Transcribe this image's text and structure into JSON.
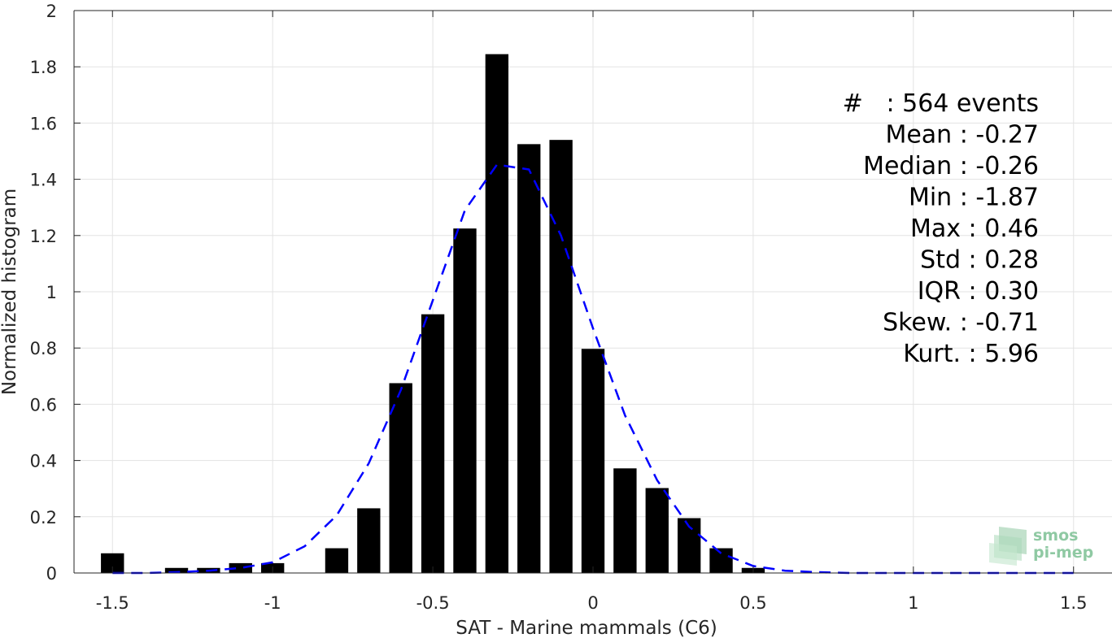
{
  "chart_data": {
    "type": "bar",
    "xlabel": "SAT - Marine mammals (C6)",
    "ylabel": "Normalized histogram",
    "xlim": [
      -1.62,
      1.62
    ],
    "ylim": [
      0,
      2
    ],
    "x_ticks": [
      -1.5,
      -1,
      -0.5,
      0,
      0.5,
      1,
      1.5
    ],
    "x_tick_labels": [
      "-1.5",
      "-1",
      "-0.5",
      "0",
      "0.5",
      "1",
      "1.5"
    ],
    "y_ticks": [
      0,
      0.2,
      0.4,
      0.6,
      0.8,
      1,
      1.2,
      1.4,
      1.6,
      1.8,
      2
    ],
    "y_tick_labels": [
      "0",
      "0.2",
      "0.4",
      "0.6",
      "0.8",
      "1",
      "1.2",
      "1.4",
      "1.6",
      "1.8",
      "2"
    ],
    "grid": true,
    "bin_width": 0.1,
    "bars": {
      "x": [
        -1.5,
        -1.3,
        -1.2,
        -1.1,
        -1.0,
        -0.8,
        -0.7,
        -0.6,
        -0.5,
        -0.4,
        -0.3,
        -0.2,
        -0.1,
        0.0,
        0.1,
        0.2,
        0.3,
        0.4,
        0.5
      ],
      "values": [
        0.07,
        0.018,
        0.018,
        0.035,
        0.035,
        0.088,
        0.23,
        0.675,
        0.92,
        1.225,
        1.845,
        1.525,
        1.54,
        0.797,
        0.372,
        0.302,
        0.195,
        0.088,
        0.018
      ],
      "color": "#000000"
    },
    "fit": {
      "style": "dashed",
      "color": "#0000ff",
      "x": [
        -1.5,
        -1.4,
        -1.3,
        -1.2,
        -1.1,
        -1.0,
        -0.9,
        -0.8,
        -0.7,
        -0.6,
        -0.5,
        -0.4,
        -0.3,
        -0.2,
        -0.1,
        0.0,
        0.1,
        0.2,
        0.3,
        0.4,
        0.5,
        0.6,
        0.7,
        0.8,
        0.9,
        1.0,
        1.1,
        1.2,
        1.3,
        1.4,
        1.5
      ],
      "values": [
        0.0,
        0.0,
        0.003,
        0.008,
        0.018,
        0.038,
        0.095,
        0.205,
        0.39,
        0.65,
        0.97,
        1.29,
        1.452,
        1.435,
        1.2,
        0.87,
        0.56,
        0.33,
        0.165,
        0.07,
        0.025,
        0.008,
        0.003,
        0.0,
        0.0,
        0.0,
        0.0,
        0.0,
        0.0,
        0.0,
        0.0
      ]
    }
  },
  "stats": [
    {
      "label": "#  ",
      "value": "564 events"
    },
    {
      "label": "Mean",
      "value": "-0.27"
    },
    {
      "label": "Median",
      "value": "-0.26"
    },
    {
      "label": "Min",
      "value": "-1.87"
    },
    {
      "label": "Max",
      "value": "0.46"
    },
    {
      "label": "Std",
      "value": "0.28"
    },
    {
      "label": "IQR",
      "value": "0.30"
    },
    {
      "label": "Skew.",
      "value": "-0.71"
    },
    {
      "label": "Kurt.",
      "value": "5.96"
    }
  ],
  "logo": {
    "line1": "smos",
    "line2": "pi-mep"
  }
}
